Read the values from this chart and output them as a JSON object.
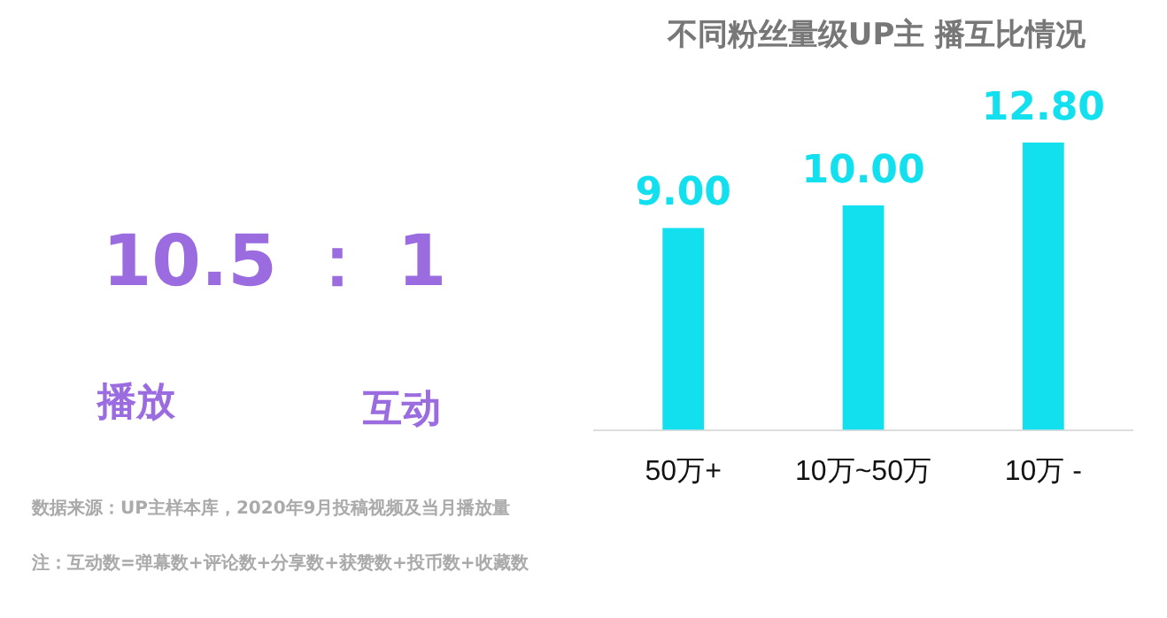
{
  "chart_data": {
    "type": "bar",
    "title": "不同粉丝量级UP主 播互比情况",
    "categories": [
      "50万+",
      "10万~50万",
      "10万 -"
    ],
    "values": [
      9.0,
      10.0,
      12.8
    ],
    "value_labels": [
      "9.00",
      "10.00",
      "12.80"
    ],
    "color": "#12e0ee",
    "grid": false,
    "legend": false,
    "annotations": [
      "10.5 ： 1",
      "播放",
      "互动",
      "数据来源：UP主样本库，2020年9月投稿视频及当月播放量",
      "注：互动数=弹幕数+评论数+分享数+获赞数+投币数+收藏数"
    ]
  }
}
